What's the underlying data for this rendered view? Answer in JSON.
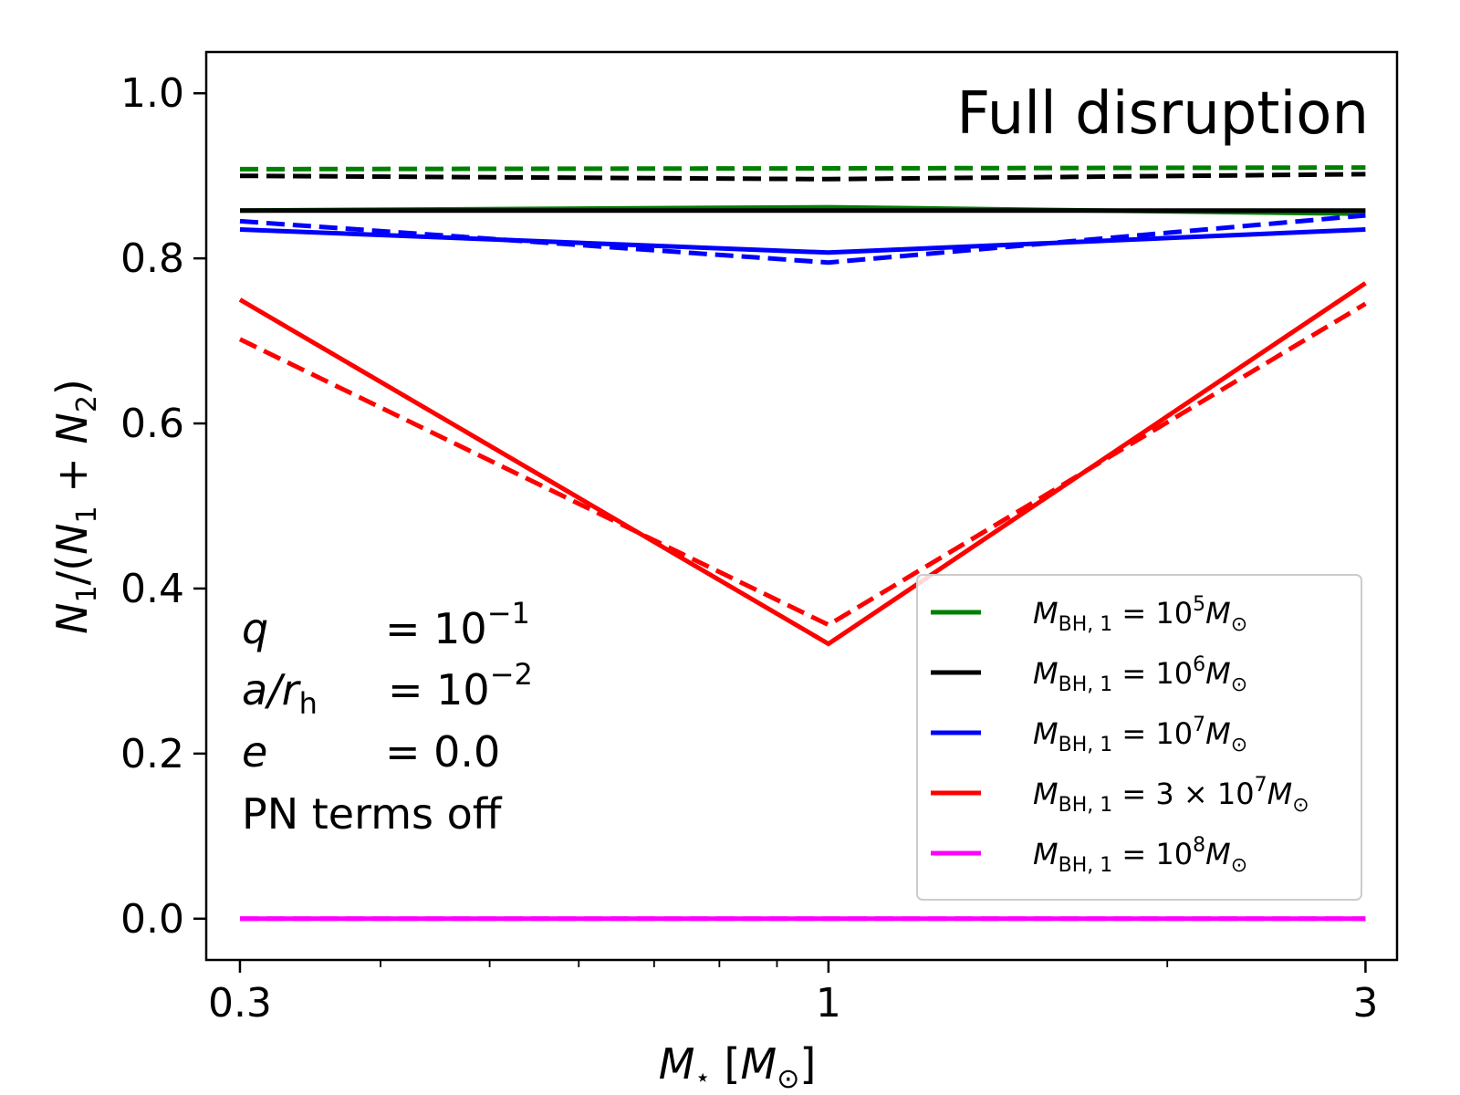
{
  "chart_data": {
    "type": "line",
    "title": "Full disruption",
    "xscale": "log",
    "xlabel": "M⋆ [M⊙]",
    "ylabel": "N1/(N1 + N2)",
    "x": [
      0.3,
      1,
      3
    ],
    "xticks": [
      "0.3",
      "1",
      "3"
    ],
    "xlim": [
      0.28,
      3.2
    ],
    "ylim": [
      -0.05,
      1.05
    ],
    "yticks": [
      "0.0",
      "0.2",
      "0.4",
      "0.6",
      "0.8",
      "1.0"
    ],
    "annotations": {
      "q_label": "q",
      "q_eq": "= 10",
      "q_exp": "−1",
      "a_label": "a/r",
      "a_sub": "h",
      "a_eq": "= 10",
      "a_exp": "−2",
      "e_label": "e",
      "e_eq": "= 0.0",
      "pn": "PN terms off"
    },
    "series": [
      {
        "name": "MBH,1 = 10^5 M⊙",
        "legend_main": "M",
        "legend_sub": "BH, 1",
        "legend_mid": " = 10",
        "legend_exp": "5",
        "legend_tail": "M",
        "legend_tail_sub": "⊙",
        "color": "#008000",
        "solid": [
          0.858,
          0.862,
          0.854
        ],
        "dashed": [
          0.908,
          0.909,
          0.91
        ]
      },
      {
        "name": "MBH,1 = 10^6 M⊙",
        "legend_main": "M",
        "legend_sub": "BH, 1",
        "legend_mid": " = 10",
        "legend_exp": "6",
        "legend_tail": "M",
        "legend_tail_sub": "⊙",
        "color": "#000000",
        "solid": [
          0.858,
          0.858,
          0.858
        ],
        "dashed": [
          0.9,
          0.896,
          0.902
        ]
      },
      {
        "name": "MBH,1 = 10^7 M⊙",
        "legend_main": "M",
        "legend_sub": "BH, 1",
        "legend_mid": " = 10",
        "legend_exp": "7",
        "legend_tail": "M",
        "legend_tail_sub": "⊙",
        "color": "#0000ff",
        "solid": [
          0.835,
          0.807,
          0.835
        ],
        "dashed": [
          0.845,
          0.795,
          0.852
        ]
      },
      {
        "name": "MBH,1 = 3×10^7 M⊙",
        "legend_main": "M",
        "legend_sub": "BH, 1",
        "legend_mid": " = 3 × 10",
        "legend_exp": "7",
        "legend_tail": "M",
        "legend_tail_sub": "⊙",
        "color": "#ff0000",
        "solid": [
          0.75,
          0.333,
          0.77
        ],
        "dashed": [
          0.702,
          0.356,
          0.745
        ]
      },
      {
        "name": "MBH,1 = 10^8 M⊙",
        "legend_main": "M",
        "legend_sub": "BH, 1",
        "legend_mid": " = 10",
        "legend_exp": "8",
        "legend_tail": "M",
        "legend_tail_sub": "⊙",
        "color": "#ff00ff",
        "solid": [
          0.0,
          0.0,
          0.0
        ],
        "dashed": [
          0.0,
          0.0,
          0.0
        ]
      }
    ]
  }
}
